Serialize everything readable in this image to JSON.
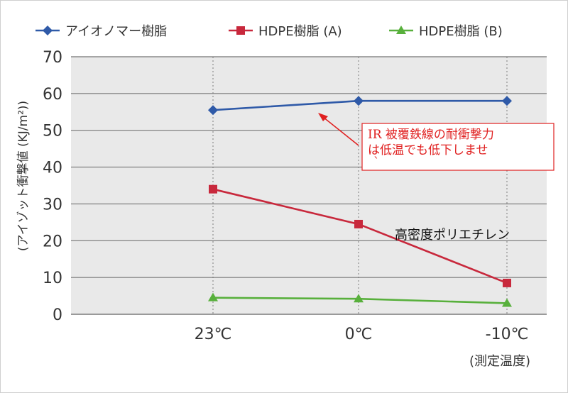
{
  "chart_data": {
    "type": "line",
    "categories": [
      "23℃",
      "0℃",
      "-10℃"
    ],
    "series": [
      {
        "name": "アイオノマー樹脂",
        "values": [
          55.5,
          58,
          58
        ],
        "color": "#2f5aa8",
        "marker": "diamond"
      },
      {
        "name": "HDPE樹脂 (A)",
        "values": [
          34,
          24.5,
          8.5
        ],
        "color": "#c8283c",
        "marker": "square"
      },
      {
        "name": "HDPE樹脂 (B)",
        "values": [
          4.5,
          4.2,
          3.0
        ],
        "color": "#58b03c",
        "marker": "triangle"
      }
    ],
    "yticks": [
      "70",
      "60",
      "50",
      "40",
      "30",
      "20",
      "10",
      "0"
    ],
    "ylim": [
      0,
      70
    ],
    "ylabel": "(アイゾット衝撃値 (KJ/m²))",
    "xunit": "(測定温度)",
    "grid": "horizontal",
    "legend_position": "top",
    "annotations": {
      "callout": [
        "IR 被覆鉄線の耐衝撃力",
        "は低温でも低下しませ",
        "`"
      ],
      "label": "高密度ポリエチレン"
    }
  }
}
